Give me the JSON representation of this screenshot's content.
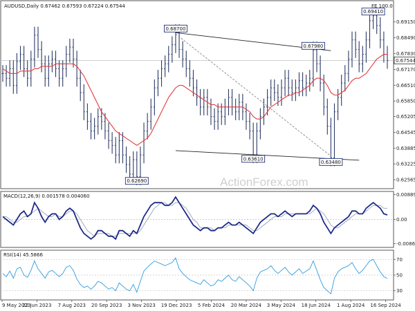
{
  "header": {
    "price_title": "AUDUSD,Daily  0.67462 0.67593 0.67224 0.67544",
    "macd_title": "MACD(12,26,9) 0.001578 0.004060",
    "rsi_title": "RSI(14) 45.5866",
    "fe_label": "FE 100.0",
    "watermark": "ActionForex.com"
  },
  "chart_data": [
    {
      "type": "line",
      "name": "price",
      "ylim": [
        0.6225,
        0.6995
      ],
      "yticks": [
        "0.69150",
        "0.68490",
        "0.67830",
        "0.67170",
        "0.66510",
        "0.65850",
        "0.65205",
        "0.64545",
        "0.63885",
        "0.63225",
        "0.62565"
      ],
      "ytick_values": [
        0.6915,
        0.6849,
        0.6783,
        0.6717,
        0.6651,
        0.6585,
        0.65205,
        0.64545,
        0.63885,
        0.63225,
        0.62565
      ],
      "current_price_label": "0.67544",
      "current_price": 0.67544,
      "xticks": [
        "9 May 2023",
        "22 Jun 2023",
        "7 Aug 2023",
        "20 Sep 2023",
        "3 Nov 2023",
        "19 Dec 2023",
        "5 Feb 2024",
        "20 Mar 2024",
        "3 May 2024",
        "18 Jun 2024",
        "1 Aug 2024",
        "16 Sep 2024"
      ],
      "close": [
        0.67,
        0.668,
        0.672,
        0.665,
        0.675,
        0.678,
        0.672,
        0.668,
        0.676,
        0.686,
        0.68,
        0.674,
        0.668,
        0.674,
        0.676,
        0.672,
        0.668,
        0.672,
        0.678,
        0.681,
        0.676,
        0.668,
        0.662,
        0.654,
        0.65,
        0.646,
        0.648,
        0.652,
        0.65,
        0.646,
        0.642,
        0.64,
        0.636,
        0.642,
        0.636,
        0.632,
        0.628,
        0.634,
        0.6269,
        0.636,
        0.646,
        0.65,
        0.656,
        0.664,
        0.668,
        0.672,
        0.674,
        0.678,
        0.682,
        0.687,
        0.68,
        0.676,
        0.672,
        0.668,
        0.664,
        0.66,
        0.656,
        0.66,
        0.656,
        0.652,
        0.65,
        0.654,
        0.652,
        0.656,
        0.66,
        0.656,
        0.654,
        0.658,
        0.654,
        0.65,
        0.646,
        0.6361,
        0.646,
        0.652,
        0.656,
        0.66,
        0.664,
        0.662,
        0.66,
        0.664,
        0.668,
        0.664,
        0.662,
        0.664,
        0.667,
        0.664,
        0.666,
        0.668,
        0.6798,
        0.674,
        0.666,
        0.656,
        0.648,
        0.6348,
        0.654,
        0.66,
        0.666,
        0.67,
        0.676,
        0.684,
        0.68,
        0.674,
        0.678,
        0.684,
        0.692,
        0.6941,
        0.69,
        0.684,
        0.678,
        0.67544
      ],
      "ma_label": "moving average",
      "ma": [
        0.672,
        0.671,
        0.67,
        0.67,
        0.67,
        0.671,
        0.671,
        0.671,
        0.671,
        0.672,
        0.672,
        0.673,
        0.673,
        0.673,
        0.673,
        0.674,
        0.674,
        0.674,
        0.674,
        0.674,
        0.674,
        0.673,
        0.671,
        0.669,
        0.666,
        0.663,
        0.66,
        0.657,
        0.654,
        0.652,
        0.65,
        0.648,
        0.646,
        0.645,
        0.644,
        0.643,
        0.642,
        0.641,
        0.64,
        0.641,
        0.642,
        0.643,
        0.645,
        0.648,
        0.651,
        0.654,
        0.657,
        0.66,
        0.662,
        0.664,
        0.665,
        0.665,
        0.664,
        0.663,
        0.662,
        0.661,
        0.66,
        0.659,
        0.658,
        0.657,
        0.657,
        0.656,
        0.656,
        0.656,
        0.656,
        0.656,
        0.656,
        0.656,
        0.656,
        0.655,
        0.654,
        0.652,
        0.651,
        0.651,
        0.652,
        0.654,
        0.656,
        0.657,
        0.658,
        0.659,
        0.66,
        0.661,
        0.661,
        0.662,
        0.662,
        0.663,
        0.664,
        0.665,
        0.667,
        0.668,
        0.668,
        0.667,
        0.665,
        0.662,
        0.661,
        0.661,
        0.662,
        0.663,
        0.665,
        0.667,
        0.668,
        0.668,
        0.669,
        0.67,
        0.672,
        0.674,
        0.676,
        0.677,
        0.678,
        0.678
      ],
      "annotations": [
        {
          "label": "0.62690",
          "index": 38,
          "value": 0.6269
        },
        {
          "label": "0.68700",
          "index": 49,
          "value": 0.687
        },
        {
          "label": "0.63610",
          "index": 71,
          "value": 0.6361
        },
        {
          "label": "0.67980",
          "index": 88,
          "value": 0.6798
        },
        {
          "label": "0.63480",
          "index": 93,
          "value": 0.6348
        },
        {
          "label": "0.69410",
          "index": 105,
          "value": 0.6941
        }
      ],
      "trendlines": [
        {
          "from": [
            49,
            0.687
          ],
          "to": [
            93,
            0.6795
          ]
        },
        {
          "from": [
            49,
            0.6865
          ],
          "to": [
            93,
            0.6355
          ],
          "dashed": true
        },
        {
          "from": [
            49,
            0.6378
          ],
          "to": [
            101,
            0.6338
          ]
        }
      ]
    },
    {
      "type": "line",
      "name": "MACD",
      "ylim": [
        -0.0095,
        0.0095
      ],
      "yticks": [
        "0.008899",
        "0.00",
        "-0.008612"
      ],
      "ytick_values": [
        0.008899,
        0.0,
        -0.008612
      ],
      "macd": [
        0.001,
        0.0,
        -0.001,
        -0.002,
        0.0,
        0.002,
        0.003,
        0.001,
        0.002,
        0.006,
        0.004,
        0.001,
        -0.001,
        0.001,
        0.002,
        0.002,
        0.0,
        0.001,
        0.003,
        0.004,
        0.003,
        0.0,
        -0.003,
        -0.005,
        -0.006,
        -0.007,
        -0.006,
        -0.004,
        -0.004,
        -0.005,
        -0.006,
        -0.006,
        -0.007,
        -0.004,
        -0.004,
        -0.005,
        -0.006,
        -0.004,
        -0.005,
        -0.002,
        0.001,
        0.003,
        0.005,
        0.006,
        0.006,
        0.006,
        0.005,
        0.005,
        0.006,
        0.008,
        0.006,
        0.004,
        0.002,
        0.0,
        -0.002,
        -0.003,
        -0.004,
        -0.003,
        -0.003,
        -0.004,
        -0.004,
        -0.003,
        -0.003,
        -0.002,
        -0.001,
        -0.002,
        -0.002,
        -0.001,
        -0.002,
        -0.003,
        -0.004,
        -0.005,
        -0.003,
        -0.001,
        0.0,
        0.001,
        0.002,
        0.002,
        0.001,
        0.002,
        0.003,
        0.002,
        0.001,
        0.002,
        0.002,
        0.002,
        0.002,
        0.003,
        0.005,
        0.004,
        0.002,
        -0.001,
        -0.003,
        -0.005,
        -0.003,
        -0.002,
        -0.001,
        0.0,
        0.001,
        0.003,
        0.003,
        0.002,
        0.002,
        0.004,
        0.005,
        0.006,
        0.005,
        0.004,
        0.002,
        0.0016
      ],
      "signal": [
        0.001,
        0.001,
        0.0,
        -0.001,
        -0.001,
        0.0,
        0.001,
        0.001,
        0.002,
        0.003,
        0.004,
        0.003,
        0.002,
        0.001,
        0.001,
        0.002,
        0.001,
        0.001,
        0.002,
        0.003,
        0.003,
        0.002,
        0.0,
        -0.002,
        -0.004,
        -0.005,
        -0.006,
        -0.005,
        -0.005,
        -0.005,
        -0.005,
        -0.006,
        -0.006,
        -0.005,
        -0.005,
        -0.005,
        -0.005,
        -0.005,
        -0.005,
        -0.004,
        -0.002,
        0.0,
        0.002,
        0.004,
        0.005,
        0.006,
        0.006,
        0.005,
        0.005,
        0.006,
        0.006,
        0.005,
        0.004,
        0.002,
        0.0,
        -0.001,
        -0.003,
        -0.003,
        -0.003,
        -0.003,
        -0.004,
        -0.003,
        -0.003,
        -0.003,
        -0.002,
        -0.002,
        -0.002,
        -0.002,
        -0.002,
        -0.002,
        -0.003,
        -0.004,
        -0.004,
        -0.003,
        -0.002,
        -0.001,
        0.0,
        0.001,
        0.001,
        0.001,
        0.002,
        0.002,
        0.002,
        0.002,
        0.002,
        0.002,
        0.002,
        0.002,
        0.003,
        0.004,
        0.003,
        0.002,
        0.0,
        -0.002,
        -0.003,
        -0.003,
        -0.002,
        -0.001,
        0.0,
        0.001,
        0.002,
        0.002,
        0.002,
        0.003,
        0.004,
        0.005,
        0.005,
        0.005,
        0.004,
        0.004
      ]
    },
    {
      "type": "line",
      "name": "RSI",
      "ylim": [
        20,
        80
      ],
      "yticks": [
        "70",
        "50",
        "30"
      ],
      "ytick_values": [
        70,
        50,
        30
      ],
      "values": [
        52,
        48,
        55,
        46,
        58,
        60,
        50,
        47,
        56,
        68,
        58,
        52,
        46,
        54,
        56,
        52,
        48,
        52,
        60,
        62,
        56,
        45,
        38,
        34,
        36,
        32,
        36,
        42,
        40,
        36,
        32,
        34,
        30,
        40,
        36,
        32,
        30,
        38,
        28,
        42,
        55,
        60,
        64,
        68,
        66,
        64,
        62,
        64,
        66,
        72,
        58,
        52,
        48,
        44,
        42,
        40,
        38,
        44,
        40,
        36,
        38,
        44,
        42,
        46,
        50,
        44,
        42,
        48,
        44,
        40,
        36,
        30,
        46,
        54,
        56,
        58,
        62,
        56,
        52,
        56,
        60,
        54,
        50,
        54,
        58,
        52,
        55,
        58,
        68,
        56,
        44,
        34,
        30,
        26,
        46,
        54,
        58,
        60,
        62,
        66,
        58,
        52,
        56,
        62,
        68,
        70,
        62,
        54,
        48,
        45.6
      ]
    }
  ]
}
